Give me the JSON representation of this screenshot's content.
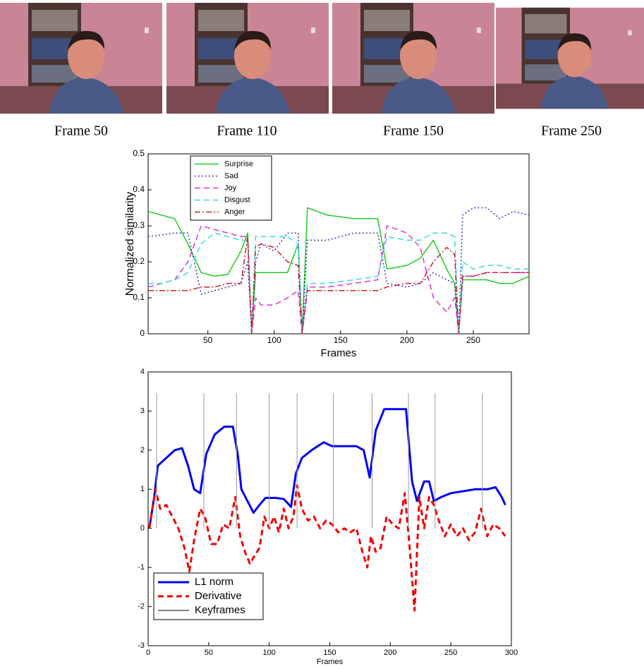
{
  "frames": [
    "Frame 50",
    "Frame 110",
    "Frame 150",
    "Frame 250"
  ],
  "chart_data": [
    {
      "type": "line",
      "xlabel": "Frames",
      "ylabel": "Normalized similarity",
      "xlim": [
        5,
        292
      ],
      "ylim": [
        0,
        0.5
      ],
      "xticks": [
        50,
        100,
        150,
        200,
        250
      ],
      "yticks": [
        0,
        0.1,
        0.2,
        0.3,
        0.4,
        0.5
      ],
      "legend": "upper left",
      "x": [
        5,
        15,
        25,
        35,
        45,
        55,
        65,
        75,
        80,
        83,
        86,
        90,
        100,
        110,
        118,
        121,
        125,
        140,
        160,
        178,
        185,
        200,
        210,
        220,
        230,
        236,
        239,
        242,
        250,
        260,
        270,
        280,
        292
      ],
      "series": [
        {
          "name": "Surprise",
          "color": "#22cc22",
          "dash": "solid",
          "values": [
            0.34,
            0.33,
            0.32,
            0.25,
            0.17,
            0.16,
            0.165,
            0.23,
            0.28,
            0,
            0.17,
            0.17,
            0.17,
            0.17,
            0.25,
            0,
            0.35,
            0.33,
            0.32,
            0.32,
            0.18,
            0.19,
            0.21,
            0.26,
            0.18,
            0.14,
            0,
            0.15,
            0.15,
            0.15,
            0.14,
            0.14,
            0.16
          ]
        },
        {
          "name": "Sad",
          "color": "#3333cc",
          "dash": "dotted",
          "values": [
            0.27,
            0.275,
            0.28,
            0.28,
            0.11,
            0.12,
            0.13,
            0.14,
            0.2,
            0,
            0.2,
            0.25,
            0.23,
            0.28,
            0.28,
            0,
            0.26,
            0.26,
            0.28,
            0.28,
            0.14,
            0.13,
            0.14,
            0.17,
            0.15,
            0.14,
            0,
            0.33,
            0.35,
            0.35,
            0.32,
            0.34,
            0.33
          ]
        },
        {
          "name": "Joy",
          "color": "#dd33dd",
          "dash": "dashed",
          "values": [
            0.13,
            0.14,
            0.15,
            0.2,
            0.3,
            0.29,
            0.28,
            0.27,
            0.27,
            0,
            0.1,
            0.08,
            0.08,
            0.1,
            0.12,
            0,
            0.13,
            0.13,
            0.14,
            0.15,
            0.3,
            0.28,
            0.24,
            0.1,
            0.06,
            0.1,
            0,
            0.16,
            0.16,
            0.17,
            0.17,
            0.17,
            0.17
          ]
        },
        {
          "name": "Disgust",
          "color": "#33dddd",
          "dash": "dashed",
          "values": [
            0.14,
            0.14,
            0.15,
            0.17,
            0.25,
            0.28,
            0.27,
            0.26,
            0.26,
            0,
            0.27,
            0.27,
            0.27,
            0.27,
            0.25,
            0,
            0.14,
            0.14,
            0.15,
            0.16,
            0.27,
            0.26,
            0.26,
            0.28,
            0.28,
            0.27,
            0,
            0.2,
            0.18,
            0.19,
            0.19,
            0.18,
            0.18
          ]
        },
        {
          "name": "Anger",
          "color": "#cc2222",
          "dash": "dashdot",
          "values": [
            0.12,
            0.12,
            0.12,
            0.12,
            0.13,
            0.13,
            0.14,
            0.14,
            0.27,
            0,
            0.24,
            0.25,
            0.24,
            0.2,
            0.19,
            0,
            0.12,
            0.12,
            0.12,
            0.12,
            0.13,
            0.14,
            0.14,
            0.2,
            0.24,
            0.22,
            0,
            0.16,
            0.16,
            0.17,
            0.17,
            0.17,
            0.17
          ]
        }
      ]
    },
    {
      "type": "line",
      "xlabel": "Frames",
      "xlim": [
        0,
        300
      ],
      "ylim": [
        -3,
        4
      ],
      "xticks": [
        0,
        50,
        100,
        150,
        200,
        250,
        300
      ],
      "yticks": [
        -3,
        -2,
        -1,
        0,
        1,
        2,
        3,
        4
      ],
      "legend": "lower left",
      "series": [
        {
          "name": "L1 norm",
          "color": "#0000ee",
          "dash": "solid",
          "width": 3,
          "x": [
            1,
            5,
            8,
            15,
            22,
            28,
            33,
            38,
            43,
            48,
            55,
            63,
            70,
            74,
            77,
            82,
            87,
            92,
            97,
            105,
            112,
            118,
            122,
            127,
            135,
            145,
            152,
            162,
            172,
            178,
            183,
            188,
            195,
            205,
            213,
            218,
            222,
            228,
            232,
            236,
            242,
            250,
            260,
            270,
            280,
            287,
            292,
            295
          ],
          "values": [
            0,
            0.8,
            1.6,
            1.8,
            2.0,
            2.05,
            1.6,
            1.0,
            0.9,
            1.9,
            2.4,
            2.6,
            2.6,
            1.9,
            1.0,
            0.7,
            0.4,
            0.6,
            0.78,
            0.78,
            0.75,
            0.55,
            1.4,
            1.8,
            2.0,
            2.2,
            2.1,
            2.1,
            2.1,
            2.0,
            1.3,
            2.5,
            3.05,
            3.05,
            3.05,
            1.2,
            0.7,
            1.2,
            1.2,
            0.7,
            0.8,
            0.9,
            0.95,
            1.0,
            1.0,
            1.05,
            0.8,
            0.6
          ]
        },
        {
          "name": "Derivative",
          "color": "#ee0000",
          "dash": "dashed",
          "width": 3,
          "x": [
            1,
            6,
            10,
            15,
            20,
            25,
            30,
            34,
            38,
            43,
            47,
            52,
            57,
            62,
            67,
            72,
            76,
            80,
            84,
            88,
            92,
            96,
            100,
            104,
            108,
            112,
            116,
            120,
            123,
            127,
            132,
            137,
            142,
            147,
            152,
            157,
            162,
            167,
            172,
            177,
            181,
            184,
            188,
            192,
            197,
            202,
            207,
            212,
            216,
            220,
            224,
            228,
            232,
            236,
            240,
            245,
            250,
            255,
            260,
            265,
            270,
            275,
            280,
            285,
            290,
            295
          ],
          "values": [
            0,
            1.0,
            0.5,
            0.6,
            0.3,
            0.0,
            -0.5,
            -1.1,
            -0.3,
            0.5,
            0.3,
            -0.4,
            -0.4,
            0.1,
            0.0,
            0.8,
            -0.2,
            -0.6,
            -0.9,
            -0.7,
            -0.5,
            0.3,
            0.0,
            0.3,
            -0.1,
            0.5,
            0.0,
            0.3,
            1.1,
            0.5,
            0.2,
            0.3,
            0.0,
            0.2,
            0.1,
            -0.1,
            0.0,
            -0.1,
            0.0,
            -0.6,
            -1.0,
            -0.2,
            -0.6,
            -0.5,
            0.3,
            0.1,
            0.0,
            0.9,
            -0.5,
            -2.1,
            0.8,
            0.0,
            0.8,
            0.6,
            0.2,
            -0.2,
            0.1,
            -0.2,
            0.0,
            -0.3,
            -0.1,
            0.5,
            -0.2,
            0.1,
            0.0,
            -0.2
          ]
        },
        {
          "name": "Keyframes",
          "color": "#000000",
          "dash": "stem",
          "width": 1,
          "x": [
            7,
            46,
            73,
            100,
            123,
            153,
            185,
            215,
            237,
            276
          ],
          "values": [
            3.45,
            3.45,
            3.45,
            3.45,
            3.45,
            3.45,
            3.45,
            3.45,
            3.45,
            3.45
          ]
        }
      ]
    }
  ]
}
